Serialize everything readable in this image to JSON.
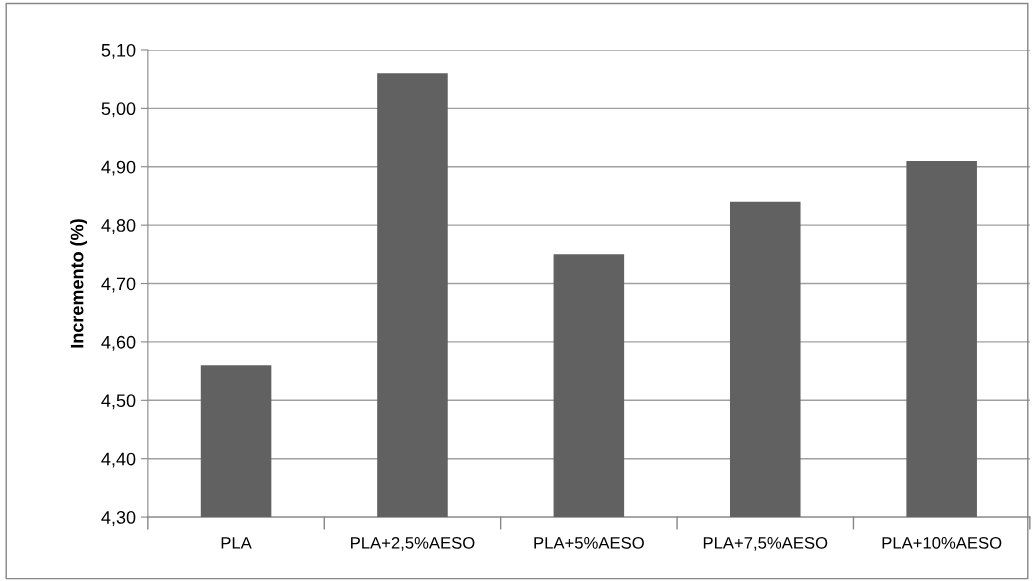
{
  "chart_data": {
    "type": "bar",
    "ylabel": "Incremento (%)",
    "categories": [
      "PLA",
      "PLA+2,5%AESO",
      "PLA+5%AESO",
      "PLA+7,5%AESO",
      "PLA+10%AESO"
    ],
    "values": [
      4.56,
      5.06,
      4.75,
      4.84,
      4.91
    ],
    "color": "#616161",
    "ylim": [
      4.3,
      5.1
    ],
    "yticks": [
      {
        "value": 4.3,
        "label": "4,30"
      },
      {
        "value": 4.4,
        "label": "4,40"
      },
      {
        "value": 4.5,
        "label": "4,50"
      },
      {
        "value": 4.6,
        "label": "4,60"
      },
      {
        "value": 4.7,
        "label": "4,70"
      },
      {
        "value": 4.8,
        "label": "4,80"
      },
      {
        "value": 4.9,
        "label": "4,90"
      },
      {
        "value": 5.0,
        "label": "5,00"
      },
      {
        "value": 5.1,
        "label": "5,10"
      }
    ],
    "grid": "y"
  }
}
